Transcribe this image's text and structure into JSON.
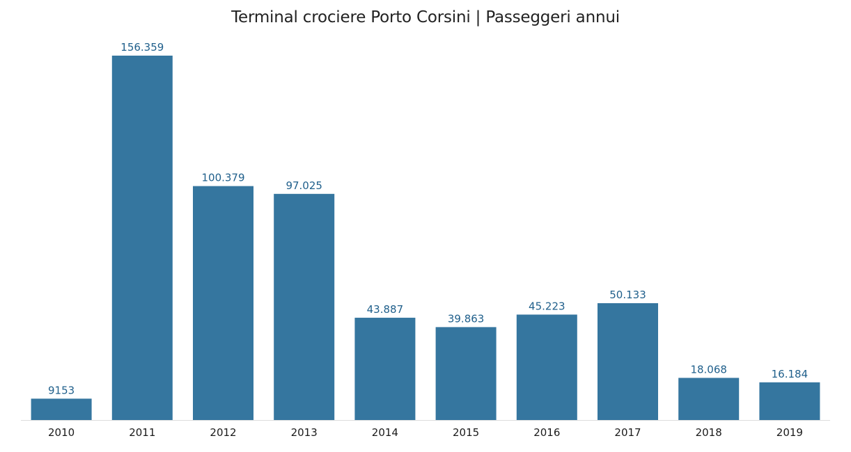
{
  "chart_data": {
    "type": "bar",
    "title": "Terminal crociere Porto Corsini | Passeggeri annui",
    "xlabel": "",
    "ylabel": "",
    "categories": [
      "2010",
      "2011",
      "2012",
      "2013",
      "2014",
      "2015",
      "2016",
      "2017",
      "2018",
      "2019"
    ],
    "values": [
      9153,
      156359,
      100379,
      97025,
      43887,
      39863,
      45223,
      50133,
      18068,
      16184
    ],
    "value_labels": [
      "9153",
      "156.359",
      "100.379",
      "97.025",
      "43.887",
      "39.863",
      "45.223",
      "50.133",
      "18.068",
      "16.184"
    ],
    "ylim": [
      0,
      156359
    ],
    "grid": false,
    "legend": "none",
    "colors": {
      "bar": "#35769f",
      "value_label": "#1f5f8b",
      "axis_line": "#dddddd",
      "title": "#222222"
    }
  }
}
